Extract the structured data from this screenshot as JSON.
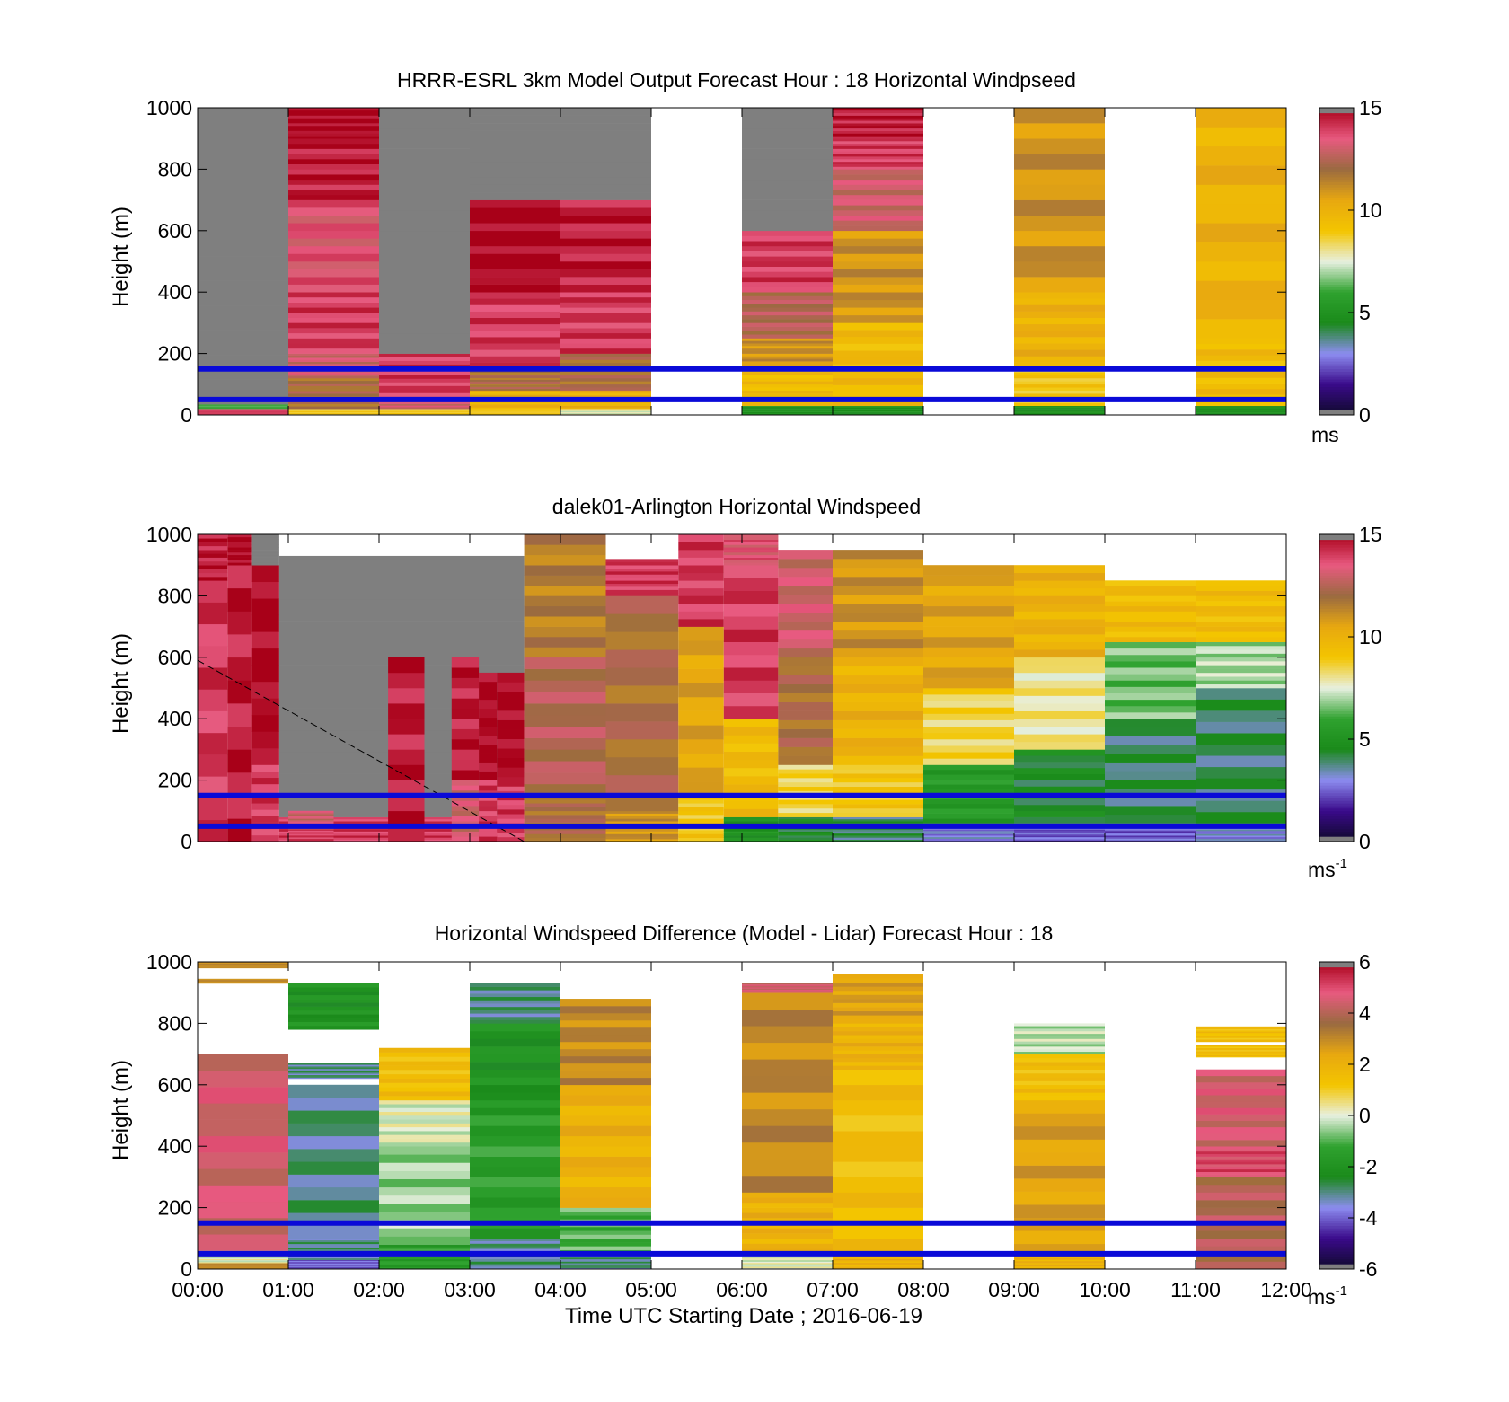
{
  "figure": {
    "xlabel": "Time UTC  Starting Date ; 2016-06-19",
    "x_ticks": [
      "00:00",
      "01:00",
      "02:00",
      "03:00",
      "04:00",
      "05:00",
      "06:00",
      "07:00",
      "08:00",
      "09:00",
      "10:00",
      "11:00",
      "12:00"
    ],
    "y_ticks": [
      "0",
      "200",
      "400",
      "600",
      "800",
      "1000"
    ],
    "ylabel": "Height (m)"
  },
  "chart_data": [
    {
      "type": "heatmap",
      "title": "HRRR-ESRL 3km Model Output   Forecast Hour : 18 Horizontal Windpseed",
      "ylabel": "Height (m)",
      "xlabel": "",
      "xlim": [
        0,
        12
      ],
      "ylim": [
        0,
        1000
      ],
      "units": {
        "base": "ms",
        "sup": ""
      },
      "colorbar": {
        "range": [
          0,
          15
        ],
        "ticks": [
          "0",
          "5",
          "10",
          "15"
        ]
      },
      "reference_lines_m": [
        150,
        50
      ],
      "columns": [
        {
          "t0": 0,
          "t1": 1,
          "segments": [
            [
              0,
              20,
              14
            ],
            [
              20,
              35,
              6
            ],
            [
              35,
              1000,
              0.1
            ]
          ]
        },
        {
          "t0": 1,
          "t1": 2,
          "segments": [
            [
              0,
              20,
              9
            ],
            [
              20,
              120,
              12
            ],
            [
              120,
              200,
              13
            ],
            [
              200,
              400,
              14
            ],
            [
              400,
              700,
              13.5
            ],
            [
              700,
              900,
              14.5
            ],
            [
              900,
              1000,
              15
            ]
          ]
        },
        {
          "t0": 2,
          "t1": 3,
          "segments": [
            [
              0,
              20,
              9
            ],
            [
              20,
              60,
              13
            ],
            [
              60,
              200,
              14
            ],
            [
              200,
              1000,
              0.1
            ]
          ]
        },
        {
          "t0": 3,
          "t1": 4,
          "segments": [
            [
              0,
              20,
              9
            ],
            [
              20,
              80,
              10
            ],
            [
              80,
              150,
              12
            ],
            [
              150,
              400,
              14
            ],
            [
              400,
              700,
              15
            ],
            [
              700,
              1000,
              0.1
            ]
          ]
        },
        {
          "t0": 4,
          "t1": 5,
          "segments": [
            [
              0,
              20,
              7.5
            ],
            [
              20,
              80,
              10
            ],
            [
              80,
              200,
              12
            ],
            [
              200,
              400,
              14
            ],
            [
              400,
              700,
              14.5
            ],
            [
              700,
              1000,
              0.1
            ]
          ]
        },
        {
          "t0": 6,
          "t1": 7,
          "segments": [
            [
              0,
              30,
              5
            ],
            [
              30,
              150,
              9.5
            ],
            [
              150,
              250,
              11
            ],
            [
              250,
              400,
              12.5
            ],
            [
              400,
              600,
              14
            ],
            [
              600,
              1000,
              0.1
            ]
          ]
        },
        {
          "t0": 7,
          "t1": 8,
          "segments": [
            [
              0,
              30,
              5
            ],
            [
              30,
              300,
              9.5
            ],
            [
              300,
              600,
              11
            ],
            [
              600,
              800,
              13
            ],
            [
              800,
              900,
              14
            ],
            [
              900,
              1000,
              14.5
            ]
          ]
        },
        {
          "t0": 9,
          "t1": 10,
          "segments": [
            [
              0,
              30,
              5
            ],
            [
              30,
              150,
              9
            ],
            [
              150,
              400,
              10
            ],
            [
              400,
              1000,
              11
            ]
          ]
        },
        {
          "t0": 11,
          "t1": 12,
          "segments": [
            [
              0,
              30,
              5
            ],
            [
              30,
              250,
              9.5
            ],
            [
              250,
              1000,
              10
            ]
          ]
        }
      ]
    },
    {
      "type": "heatmap",
      "title": "dalek01-Arlington  Horizontal Windspeed",
      "ylabel": "Height (m)",
      "xlabel": "",
      "xlim": [
        0,
        12
      ],
      "ylim": [
        0,
        1000
      ],
      "units": {
        "base": "ms",
        "sup": "-1"
      },
      "colorbar": {
        "range": [
          0,
          15
        ],
        "ticks": [
          "0",
          "5",
          "10",
          "15"
        ]
      },
      "reference_lines_m": [
        150,
        50
      ],
      "dashed_line": {
        "x": [
          0,
          3.6
        ],
        "y": [
          590,
          0
        ]
      },
      "columns": [
        {
          "t0": 0,
          "t1": 0.33,
          "segments": [
            [
              0,
              850,
              14
            ],
            [
              850,
              1000,
              14.5
            ]
          ]
        },
        {
          "t0": 0.33,
          "t1": 0.6,
          "segments": [
            [
              0,
              900,
              14.5
            ],
            [
              900,
              1000,
              15
            ]
          ]
        },
        {
          "t0": 0.6,
          "t1": 0.9,
          "segments": [
            [
              0,
              250,
              14
            ],
            [
              250,
              900,
              15
            ],
            [
              900,
              1000,
              0.1
            ]
          ]
        },
        {
          "t0": 0.9,
          "t1": 3.6,
          "segments": [
            [
              0,
              80,
              14
            ],
            [
              80,
              930,
              0.1
            ]
          ]
        },
        {
          "t0": 1.0,
          "t1": 1.5,
          "segments": [
            [
              0,
              40,
              14
            ],
            [
              40,
              100,
              13
            ]
          ]
        },
        {
          "t0": 2.1,
          "t1": 2.5,
          "segments": [
            [
              0,
              600,
              14.5
            ]
          ]
        },
        {
          "t0": 2.8,
          "t1": 3.1,
          "segments": [
            [
              0,
              200,
              13
            ],
            [
              200,
              600,
              14.5
            ]
          ]
        },
        {
          "t0": 3.1,
          "t1": 3.3,
          "segments": [
            [
              0,
              200,
              14
            ],
            [
              200,
              550,
              15
            ]
          ]
        },
        {
          "t0": 3.3,
          "t1": 3.6,
          "segments": [
            [
              0,
              180,
              14
            ],
            [
              180,
              550,
              15
            ]
          ]
        },
        {
          "t0": 3.6,
          "t1": 4.5,
          "segments": [
            [
              0,
              150,
              12
            ],
            [
              150,
              600,
              12.5
            ],
            [
              600,
              1000,
              11.5
            ]
          ]
        },
        {
          "t0": 4.5,
          "t1": 5.3,
          "segments": [
            [
              0,
              100,
              11
            ],
            [
              100,
              800,
              12
            ],
            [
              800,
              920,
              14
            ]
          ]
        },
        {
          "t0": 5.3,
          "t1": 5.8,
          "segments": [
            [
              0,
              150,
              9
            ],
            [
              150,
              700,
              10.5
            ],
            [
              700,
              1000,
              14
            ]
          ]
        },
        {
          "t0": 5.8,
          "t1": 6.4,
          "segments": [
            [
              0,
              80,
              5
            ],
            [
              80,
              400,
              9.5
            ],
            [
              400,
              900,
              14
            ],
            [
              900,
              1000,
              13.5
            ]
          ]
        },
        {
          "t0": 6.4,
          "t1": 7.0,
          "segments": [
            [
              0,
              80,
              4.5
            ],
            [
              80,
              250,
              8.5
            ],
            [
              250,
              600,
              12
            ],
            [
              600,
              950,
              13
            ]
          ]
        },
        {
          "t0": 7.0,
          "t1": 8.0,
          "segments": [
            [
              0,
              80,
              4
            ],
            [
              80,
              250,
              9
            ],
            [
              250,
              600,
              10
            ],
            [
              600,
              950,
              11
            ]
          ]
        },
        {
          "t0": 8.0,
          "t1": 9.0,
          "segments": [
            [
              0,
              60,
              3
            ],
            [
              60,
              250,
              5.5
            ],
            [
              250,
              500,
              8.5
            ],
            [
              500,
              900,
              10.5
            ]
          ]
        },
        {
          "t0": 9.0,
          "t1": 10.0,
          "segments": [
            [
              0,
              60,
              2.5
            ],
            [
              60,
              300,
              4.5
            ],
            [
              300,
              600,
              8
            ],
            [
              600,
              900,
              10
            ]
          ]
        },
        {
          "t0": 10.0,
          "t1": 11.0,
          "segments": [
            [
              0,
              60,
              2.5
            ],
            [
              60,
              400,
              4
            ],
            [
              400,
              650,
              6.5
            ],
            [
              650,
              850,
              9.5
            ]
          ]
        },
        {
          "t0": 11.0,
          "t1": 12.0,
          "segments": [
            [
              0,
              60,
              3
            ],
            [
              60,
              500,
              4
            ],
            [
              500,
              650,
              7
            ],
            [
              650,
              850,
              9.5
            ]
          ]
        }
      ]
    },
    {
      "type": "heatmap",
      "title": "Horizontal Windspeed Difference (Model - Lidar) Forecast Hour : 18",
      "ylabel": "Height (m)",
      "xlabel": "Time UTC  Starting Date ; 2016-06-19",
      "xlim": [
        0,
        12
      ],
      "ylim": [
        0,
        1000
      ],
      "units": {
        "base": "ms",
        "sup": "-1"
      },
      "colorbar": {
        "range": [
          -6,
          6
        ],
        "ticks": [
          "-6",
          "-4",
          "-2",
          "0",
          "2",
          "4",
          "6"
        ]
      },
      "reference_lines_m": [
        150,
        50
      ],
      "columns": [
        {
          "t0": 0,
          "t1": 1,
          "segments": [
            [
              0,
              20,
              3
            ],
            [
              20,
              60,
              0
            ],
            [
              60,
              700,
              4.5
            ],
            [
              930,
              945,
              3
            ],
            [
              980,
              1000,
              3
            ]
          ]
        },
        {
          "t0": 1,
          "t1": 2,
          "segments": [
            [
              0,
              30,
              -4
            ],
            [
              30,
              100,
              -3
            ],
            [
              100,
              600,
              -3
            ],
            [
              620,
              670,
              -3
            ],
            [
              780,
              930,
              -2
            ]
          ]
        },
        {
          "t0": 2,
          "t1": 3,
          "segments": [
            [
              0,
              80,
              -1.5
            ],
            [
              80,
              400,
              -0.5
            ],
            [
              400,
              550,
              0
            ],
            [
              550,
              720,
              1.5
            ]
          ]
        },
        {
          "t0": 3,
          "t1": 4,
          "segments": [
            [
              0,
              100,
              -3
            ],
            [
              100,
              500,
              -1.5
            ],
            [
              500,
              800,
              -2
            ],
            [
              800,
              930,
              -3
            ]
          ]
        },
        {
          "t0": 4,
          "t1": 5,
          "segments": [
            [
              0,
              50,
              -3
            ],
            [
              50,
              200,
              -1
            ],
            [
              200,
              600,
              2
            ],
            [
              600,
              880,
              3
            ]
          ]
        },
        {
          "t0": 6,
          "t1": 7,
          "segments": [
            [
              0,
              50,
              0
            ],
            [
              50,
              250,
              2
            ],
            [
              250,
              900,
              3
            ],
            [
              900,
              930,
              4.5
            ]
          ]
        },
        {
          "t0": 7,
          "t1": 8,
          "segments": [
            [
              0,
              50,
              2
            ],
            [
              50,
              650,
              1.5
            ],
            [
              650,
              800,
              2
            ],
            [
              800,
              960,
              2.5
            ]
          ]
        },
        {
          "t0": 9,
          "t1": 10,
          "segments": [
            [
              0,
              40,
              2
            ],
            [
              40,
              550,
              2.5
            ],
            [
              550,
              700,
              1.5
            ],
            [
              700,
              800,
              -0.3
            ]
          ]
        },
        {
          "t0": 11,
          "t1": 12,
          "segments": [
            [
              0,
              300,
              4
            ],
            [
              300,
              400,
              5
            ],
            [
              400,
              650,
              4.5
            ],
            [
              690,
              730,
              1.5
            ],
            [
              740,
              790,
              1.5
            ]
          ]
        }
      ]
    }
  ],
  "colors": {
    "background": "#ffffff",
    "missing": "#7f7f7f",
    "reference_line": "#0a0ad8",
    "dashed_line": "#000000",
    "colorbar_stops": [
      "#0e0a2a",
      "#3a0a8a",
      "#8c8cf0",
      "#1a8a1a",
      "#2fa22f",
      "#e8f0e0",
      "#f3c500",
      "#e8a810",
      "#9a6a40",
      "#e85a80",
      "#a80018"
    ]
  }
}
